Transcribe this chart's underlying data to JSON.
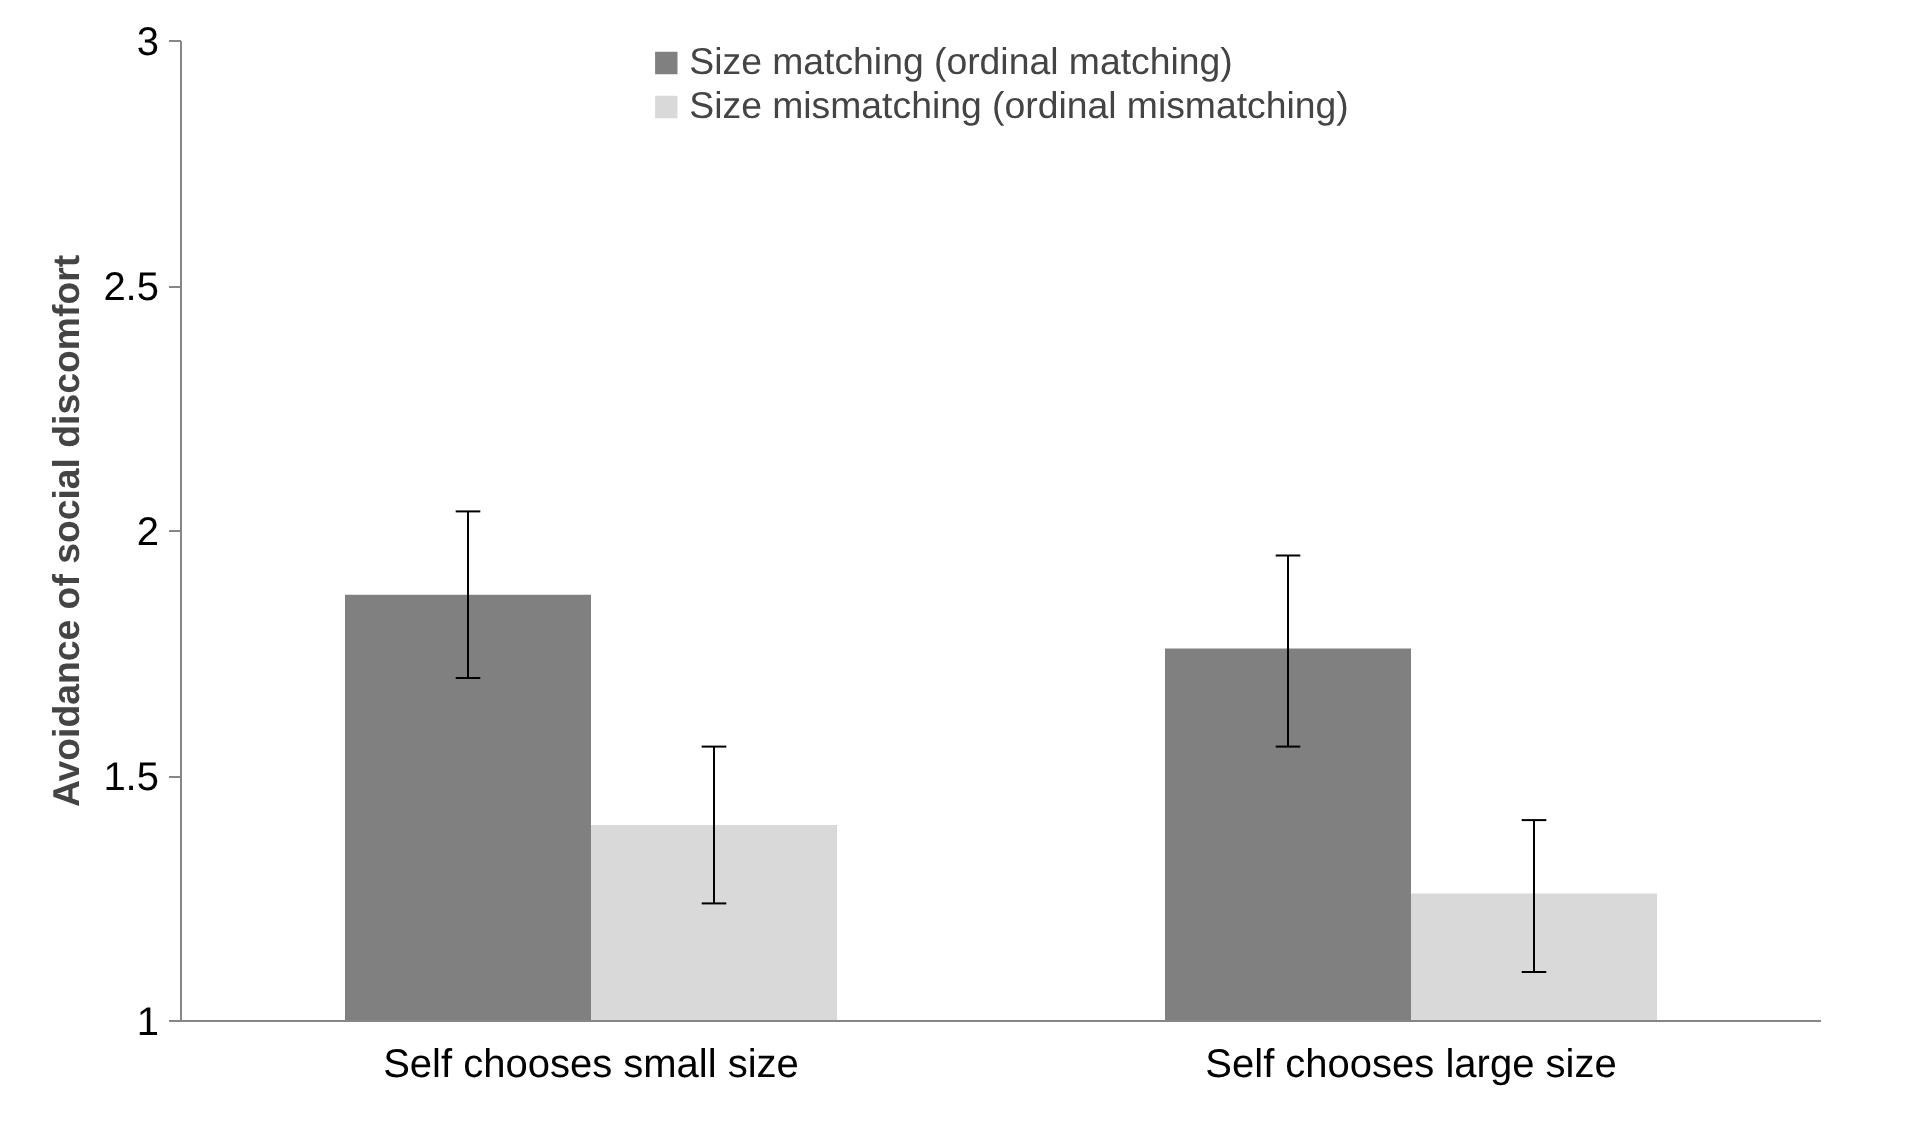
{
  "chart_data": {
    "type": "bar",
    "ylabel": "Avoidance of social discomfort",
    "categories": [
      "Self chooses small size",
      "Self chooses large size"
    ],
    "series": [
      {
        "name": "Size matching (ordinal matching)",
        "color": "#808080",
        "values": [
          1.87,
          1.76
        ],
        "errors": [
          [
            1.7,
            2.04
          ],
          [
            1.56,
            1.95
          ]
        ]
      },
      {
        "name": "Size mismatching (ordinal mismatching)",
        "color": "#d9d9d9",
        "values": [
          1.4,
          1.26
        ],
        "errors": [
          [
            1.24,
            1.56
          ],
          [
            1.1,
            1.41
          ]
        ]
      }
    ],
    "ylim": [
      1,
      3
    ],
    "yticks": [
      1,
      1.5,
      2,
      2.5,
      3
    ],
    "grid": false,
    "legend": "top"
  }
}
